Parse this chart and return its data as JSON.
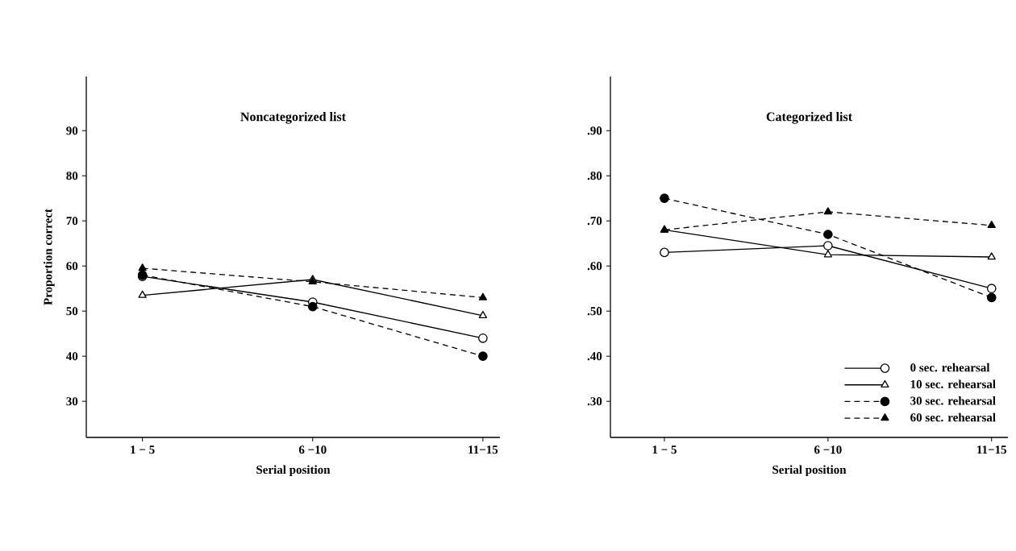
{
  "chart_data": [
    {
      "type": "line",
      "title": "Noncategorized list",
      "xlabel": "Serial position",
      "ylabel": "Proportion correct",
      "categories": [
        "1 − 5",
        "6 −10",
        "11−15"
      ],
      "series": [
        {
          "color": "#000000",
          "marker": "circle",
          "line_style": "solid",
          "values": [
            57.7,
            52,
            44
          ]
        },
        {
          "color": "#000000",
          "marker": "triangle",
          "line_style": "solid",
          "values": [
            53.5,
            57,
            49
          ]
        },
        {
          "color": "#000000",
          "marker": "circle",
          "line_style": "dashed",
          "values": [
            58,
            51,
            40
          ]
        },
        {
          "color": "#000000",
          "marker": "triangle",
          "line_style": "dashed",
          "values": [
            59.5,
            56.5,
            53
          ]
        }
      ],
      "ylim": [
        22,
        102
      ],
      "yticks": [
        30,
        40,
        50,
        60,
        70,
        80,
        90
      ],
      "grid": false,
      "legend": false
    },
    {
      "type": "line",
      "title": "Categorized list",
      "xlabel": "Serial position",
      "categories": [
        "1 − 5",
        "6 −10",
        "11−15"
      ],
      "series": [
        {
          "name": "0 sec. rehearsal",
          "color": "#000000",
          "marker": "circle",
          "line_style": "solid",
          "values": [
            0.63,
            0.645,
            0.55
          ]
        },
        {
          "name": "10 sec. rehearsal",
          "color": "#000000",
          "marker": "triangle",
          "line_style": "solid",
          "values": [
            0.68,
            0.625,
            0.62
          ]
        },
        {
          "name": "30 sec. rehearsal",
          "color": "#000000",
          "marker": "circle",
          "line_style": "dashed",
          "values": [
            0.75,
            0.67,
            0.53
          ]
        },
        {
          "name": "60 sec. rehearsal",
          "color": "#000000",
          "marker": "triangle",
          "line_style": "dashed",
          "values": [
            0.68,
            0.72,
            0.69
          ]
        }
      ],
      "ylim": [
        0.22,
        1.02
      ],
      "yticks": [
        {
          "value": 0.3,
          "label": ".30"
        },
        {
          "value": 0.4,
          "label": ".40"
        },
        {
          "value": 0.5,
          "label": ".50"
        },
        {
          "value": 0.6,
          "label": ".60"
        },
        {
          "value": 0.7,
          "label": ".70"
        },
        {
          "value": 0.8,
          "label": ".80"
        },
        {
          "value": 0.9,
          "label": ".90"
        }
      ],
      "grid": false,
      "legend": "bottom right"
    }
  ]
}
